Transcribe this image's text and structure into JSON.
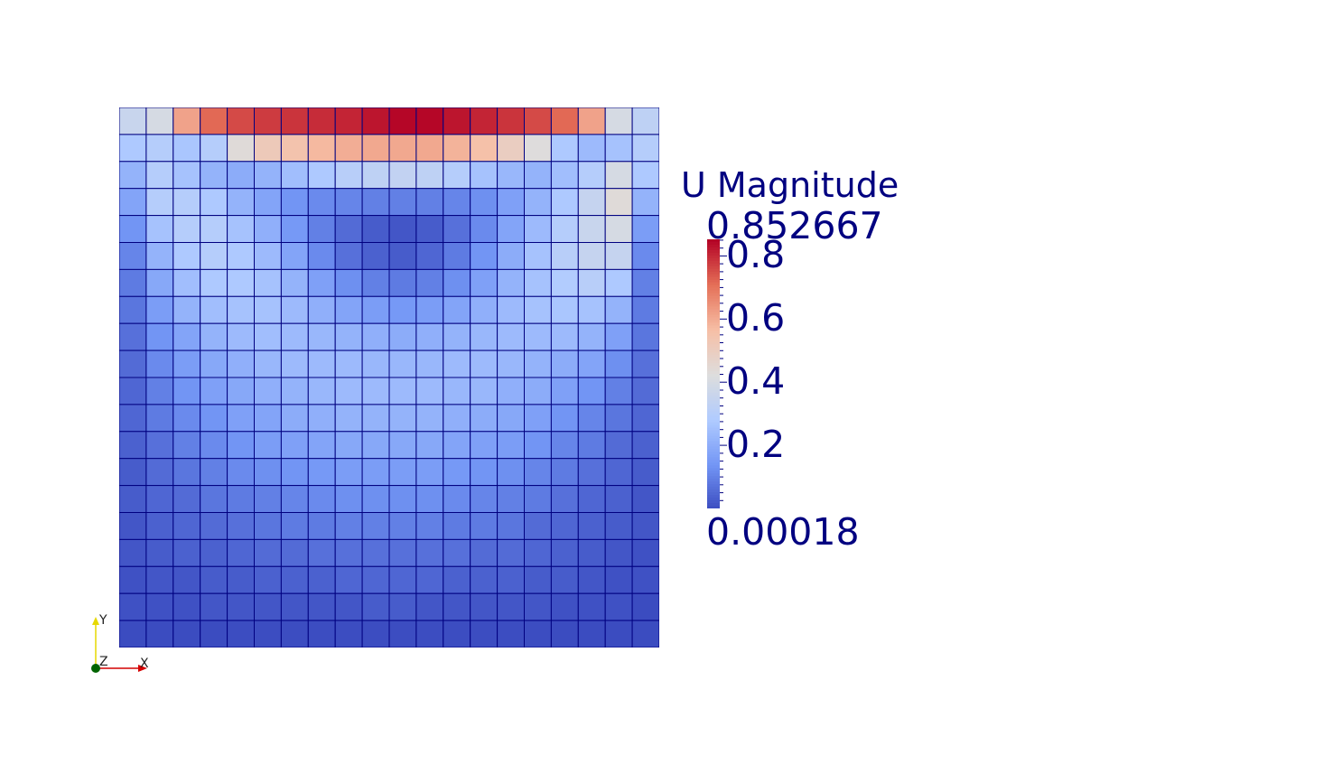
{
  "viewport": {
    "array_name": "U Magnitude",
    "mesh": {
      "cells_x": 20,
      "cells_y": 20,
      "grid_line_color": "#000080",
      "magnitude_rows_top_to_bottom": [
        [
          0.36,
          0.4,
          0.62,
          0.72,
          0.76,
          0.78,
          0.79,
          0.8,
          0.81,
          0.83,
          0.85,
          0.85,
          0.83,
          0.81,
          0.79,
          0.76,
          0.72,
          0.62,
          0.4,
          0.33
        ],
        [
          0.28,
          0.3,
          0.27,
          0.3,
          0.44,
          0.52,
          0.55,
          0.58,
          0.6,
          0.61,
          0.61,
          0.61,
          0.59,
          0.56,
          0.5,
          0.43,
          0.28,
          0.24,
          0.26,
          0.3
        ],
        [
          0.22,
          0.3,
          0.26,
          0.22,
          0.2,
          0.22,
          0.25,
          0.28,
          0.31,
          0.33,
          0.34,
          0.33,
          0.3,
          0.26,
          0.23,
          0.22,
          0.25,
          0.3,
          0.4,
          0.28
        ],
        [
          0.18,
          0.3,
          0.3,
          0.28,
          0.22,
          0.18,
          0.14,
          0.12,
          0.11,
          0.1,
          0.1,
          0.1,
          0.11,
          0.13,
          0.17,
          0.22,
          0.28,
          0.35,
          0.44,
          0.22
        ],
        [
          0.14,
          0.26,
          0.3,
          0.3,
          0.26,
          0.21,
          0.15,
          0.1,
          0.06,
          0.03,
          0.02,
          0.03,
          0.07,
          0.12,
          0.18,
          0.24,
          0.3,
          0.36,
          0.4,
          0.16
        ],
        [
          0.11,
          0.22,
          0.28,
          0.3,
          0.28,
          0.24,
          0.18,
          0.12,
          0.07,
          0.04,
          0.03,
          0.05,
          0.09,
          0.14,
          0.2,
          0.26,
          0.31,
          0.35,
          0.35,
          0.12
        ],
        [
          0.09,
          0.19,
          0.25,
          0.28,
          0.28,
          0.26,
          0.22,
          0.17,
          0.13,
          0.1,
          0.09,
          0.1,
          0.13,
          0.17,
          0.22,
          0.26,
          0.29,
          0.31,
          0.28,
          0.1
        ],
        [
          0.08,
          0.16,
          0.22,
          0.25,
          0.26,
          0.26,
          0.24,
          0.21,
          0.18,
          0.16,
          0.15,
          0.16,
          0.18,
          0.21,
          0.24,
          0.26,
          0.27,
          0.26,
          0.22,
          0.09
        ],
        [
          0.07,
          0.14,
          0.18,
          0.22,
          0.24,
          0.25,
          0.24,
          0.23,
          0.22,
          0.21,
          0.2,
          0.21,
          0.22,
          0.23,
          0.24,
          0.24,
          0.24,
          0.22,
          0.17,
          0.08
        ],
        [
          0.06,
          0.12,
          0.16,
          0.19,
          0.21,
          0.23,
          0.24,
          0.24,
          0.24,
          0.23,
          0.23,
          0.23,
          0.24,
          0.24,
          0.23,
          0.22,
          0.2,
          0.18,
          0.13,
          0.07
        ],
        [
          0.05,
          0.1,
          0.14,
          0.17,
          0.19,
          0.21,
          0.22,
          0.23,
          0.24,
          0.24,
          0.24,
          0.24,
          0.23,
          0.23,
          0.21,
          0.2,
          0.17,
          0.14,
          0.1,
          0.06
        ],
        [
          0.05,
          0.09,
          0.12,
          0.14,
          0.17,
          0.18,
          0.2,
          0.21,
          0.22,
          0.22,
          0.22,
          0.22,
          0.21,
          0.2,
          0.19,
          0.17,
          0.14,
          0.11,
          0.08,
          0.05
        ],
        [
          0.04,
          0.07,
          0.1,
          0.12,
          0.14,
          0.16,
          0.17,
          0.18,
          0.19,
          0.19,
          0.19,
          0.19,
          0.18,
          0.17,
          0.16,
          0.14,
          0.11,
          0.09,
          0.06,
          0.04
        ],
        [
          0.03,
          0.06,
          0.08,
          0.1,
          0.12,
          0.13,
          0.14,
          0.15,
          0.16,
          0.16,
          0.16,
          0.16,
          0.15,
          0.14,
          0.13,
          0.11,
          0.09,
          0.07,
          0.05,
          0.03
        ],
        [
          0.03,
          0.05,
          0.06,
          0.08,
          0.09,
          0.1,
          0.11,
          0.12,
          0.13,
          0.13,
          0.13,
          0.13,
          0.12,
          0.11,
          0.1,
          0.09,
          0.07,
          0.05,
          0.04,
          0.02
        ],
        [
          0.02,
          0.04,
          0.05,
          0.06,
          0.07,
          0.08,
          0.09,
          0.09,
          0.1,
          0.1,
          0.1,
          0.1,
          0.09,
          0.09,
          0.08,
          0.06,
          0.05,
          0.04,
          0.03,
          0.02
        ],
        [
          0.02,
          0.03,
          0.04,
          0.04,
          0.05,
          0.06,
          0.06,
          0.07,
          0.07,
          0.07,
          0.07,
          0.07,
          0.07,
          0.06,
          0.06,
          0.05,
          0.04,
          0.03,
          0.02,
          0.01
        ],
        [
          0.01,
          0.02,
          0.02,
          0.03,
          0.03,
          0.04,
          0.04,
          0.04,
          0.05,
          0.05,
          0.05,
          0.05,
          0.04,
          0.04,
          0.04,
          0.03,
          0.03,
          0.02,
          0.01,
          0.01
        ],
        [
          0.01,
          0.01,
          0.01,
          0.02,
          0.02,
          0.02,
          0.02,
          0.02,
          0.02,
          0.03,
          0.03,
          0.02,
          0.02,
          0.02,
          0.02,
          0.02,
          0.01,
          0.01,
          0.01,
          0.0002
        ],
        [
          0.0002,
          0.0005,
          0.001,
          0.001,
          0.002,
          0.002,
          0.002,
          0.002,
          0.003,
          0.003,
          0.003,
          0.003,
          0.002,
          0.002,
          0.002,
          0.002,
          0.001,
          0.001,
          0.0005,
          0.0002
        ]
      ]
    },
    "legend": {
      "title": "U Magnitude",
      "max_label": "0.852667",
      "min_label": "0.00018",
      "range": [
        0.00018,
        0.852667
      ],
      "ticks": [
        {
          "value": 0.8,
          "label": "0.8"
        },
        {
          "value": 0.6,
          "label": "0.6"
        },
        {
          "value": 0.4,
          "label": "0.4"
        },
        {
          "value": 0.2,
          "label": "0.2"
        }
      ],
      "minor_tick_step": 0.025,
      "colormap": [
        "#3b4cc0",
        "#7396f5",
        "#b0cbff",
        "#dddddd",
        "#f6bfa6",
        "#e57058",
        "#b40426"
      ],
      "text_color": "#000080"
    },
    "orientation_axes": {
      "x_label": "X",
      "y_label": "Y",
      "z_label": "Z",
      "x_color": "#d40000",
      "y_color": "#e6d800",
      "z_color": "#006400"
    }
  }
}
